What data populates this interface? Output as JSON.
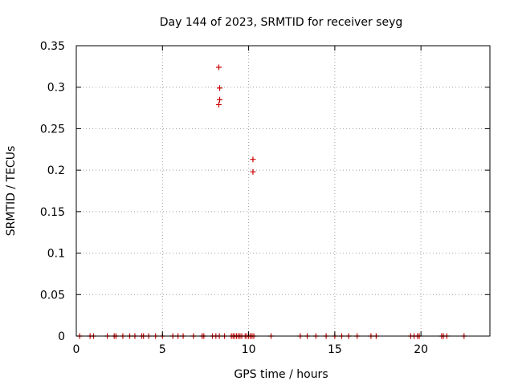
{
  "chart_data": {
    "type": "scatter",
    "title": "Day 144 of 2023, SRMTID for receiver seyg",
    "xlabel": "GPS time / hours",
    "ylabel": "SRMTID / TECUs",
    "xlim": [
      0,
      24
    ],
    "ylim": [
      0,
      0.35
    ],
    "x_ticks": [
      0,
      5,
      10,
      15,
      20
    ],
    "x_tick_labels": [
      "0",
      "5",
      "10",
      "15",
      "20"
    ],
    "y_ticks": [
      0,
      0.05,
      0.1,
      0.15,
      0.2,
      0.25,
      0.3,
      0.35
    ],
    "y_tick_labels": [
      "0",
      "0.05",
      "0.1",
      "0.15",
      "0.2",
      "0.25",
      "0.3",
      "0.35"
    ],
    "grid": true,
    "marker": "+",
    "color": "#cc0000",
    "series": [
      {
        "name": "SRMTID",
        "points": [
          [
            8.27,
            0.324
          ],
          [
            8.32,
            0.299
          ],
          [
            8.32,
            0.285
          ],
          [
            8.27,
            0.279
          ],
          [
            10.25,
            0.213
          ],
          [
            10.25,
            0.198
          ],
          [
            0.2,
            0
          ],
          [
            0.8,
            0
          ],
          [
            1.0,
            0
          ],
          [
            1.8,
            0
          ],
          [
            2.2,
            0
          ],
          [
            2.3,
            0
          ],
          [
            2.7,
            0
          ],
          [
            3.1,
            0
          ],
          [
            3.4,
            0
          ],
          [
            3.8,
            0
          ],
          [
            3.9,
            0
          ],
          [
            4.2,
            0
          ],
          [
            4.6,
            0
          ],
          [
            5.0,
            0
          ],
          [
            5.6,
            0
          ],
          [
            5.9,
            0
          ],
          [
            6.2,
            0
          ],
          [
            6.8,
            0
          ],
          [
            7.3,
            0
          ],
          [
            7.4,
            0
          ],
          [
            7.9,
            0
          ],
          [
            8.1,
            0
          ],
          [
            8.3,
            0
          ],
          [
            8.6,
            0
          ],
          [
            9.0,
            0
          ],
          [
            9.1,
            0
          ],
          [
            9.2,
            0
          ],
          [
            9.3,
            0
          ],
          [
            9.4,
            0
          ],
          [
            9.5,
            0
          ],
          [
            9.6,
            0
          ],
          [
            9.8,
            0
          ],
          [
            9.9,
            0
          ],
          [
            10.0,
            0
          ],
          [
            10.1,
            0
          ],
          [
            10.2,
            0
          ],
          [
            10.3,
            0
          ],
          [
            11.3,
            0
          ],
          [
            13.0,
            0
          ],
          [
            13.4,
            0
          ],
          [
            13.9,
            0
          ],
          [
            14.5,
            0
          ],
          [
            15.0,
            0
          ],
          [
            15.4,
            0
          ],
          [
            15.8,
            0
          ],
          [
            16.3,
            0
          ],
          [
            17.1,
            0
          ],
          [
            17.4,
            0
          ],
          [
            19.4,
            0
          ],
          [
            19.6,
            0
          ],
          [
            19.8,
            0
          ],
          [
            19.9,
            0
          ],
          [
            21.2,
            0
          ],
          [
            21.3,
            0
          ],
          [
            21.5,
            0
          ],
          [
            22.5,
            0
          ]
        ]
      }
    ]
  }
}
